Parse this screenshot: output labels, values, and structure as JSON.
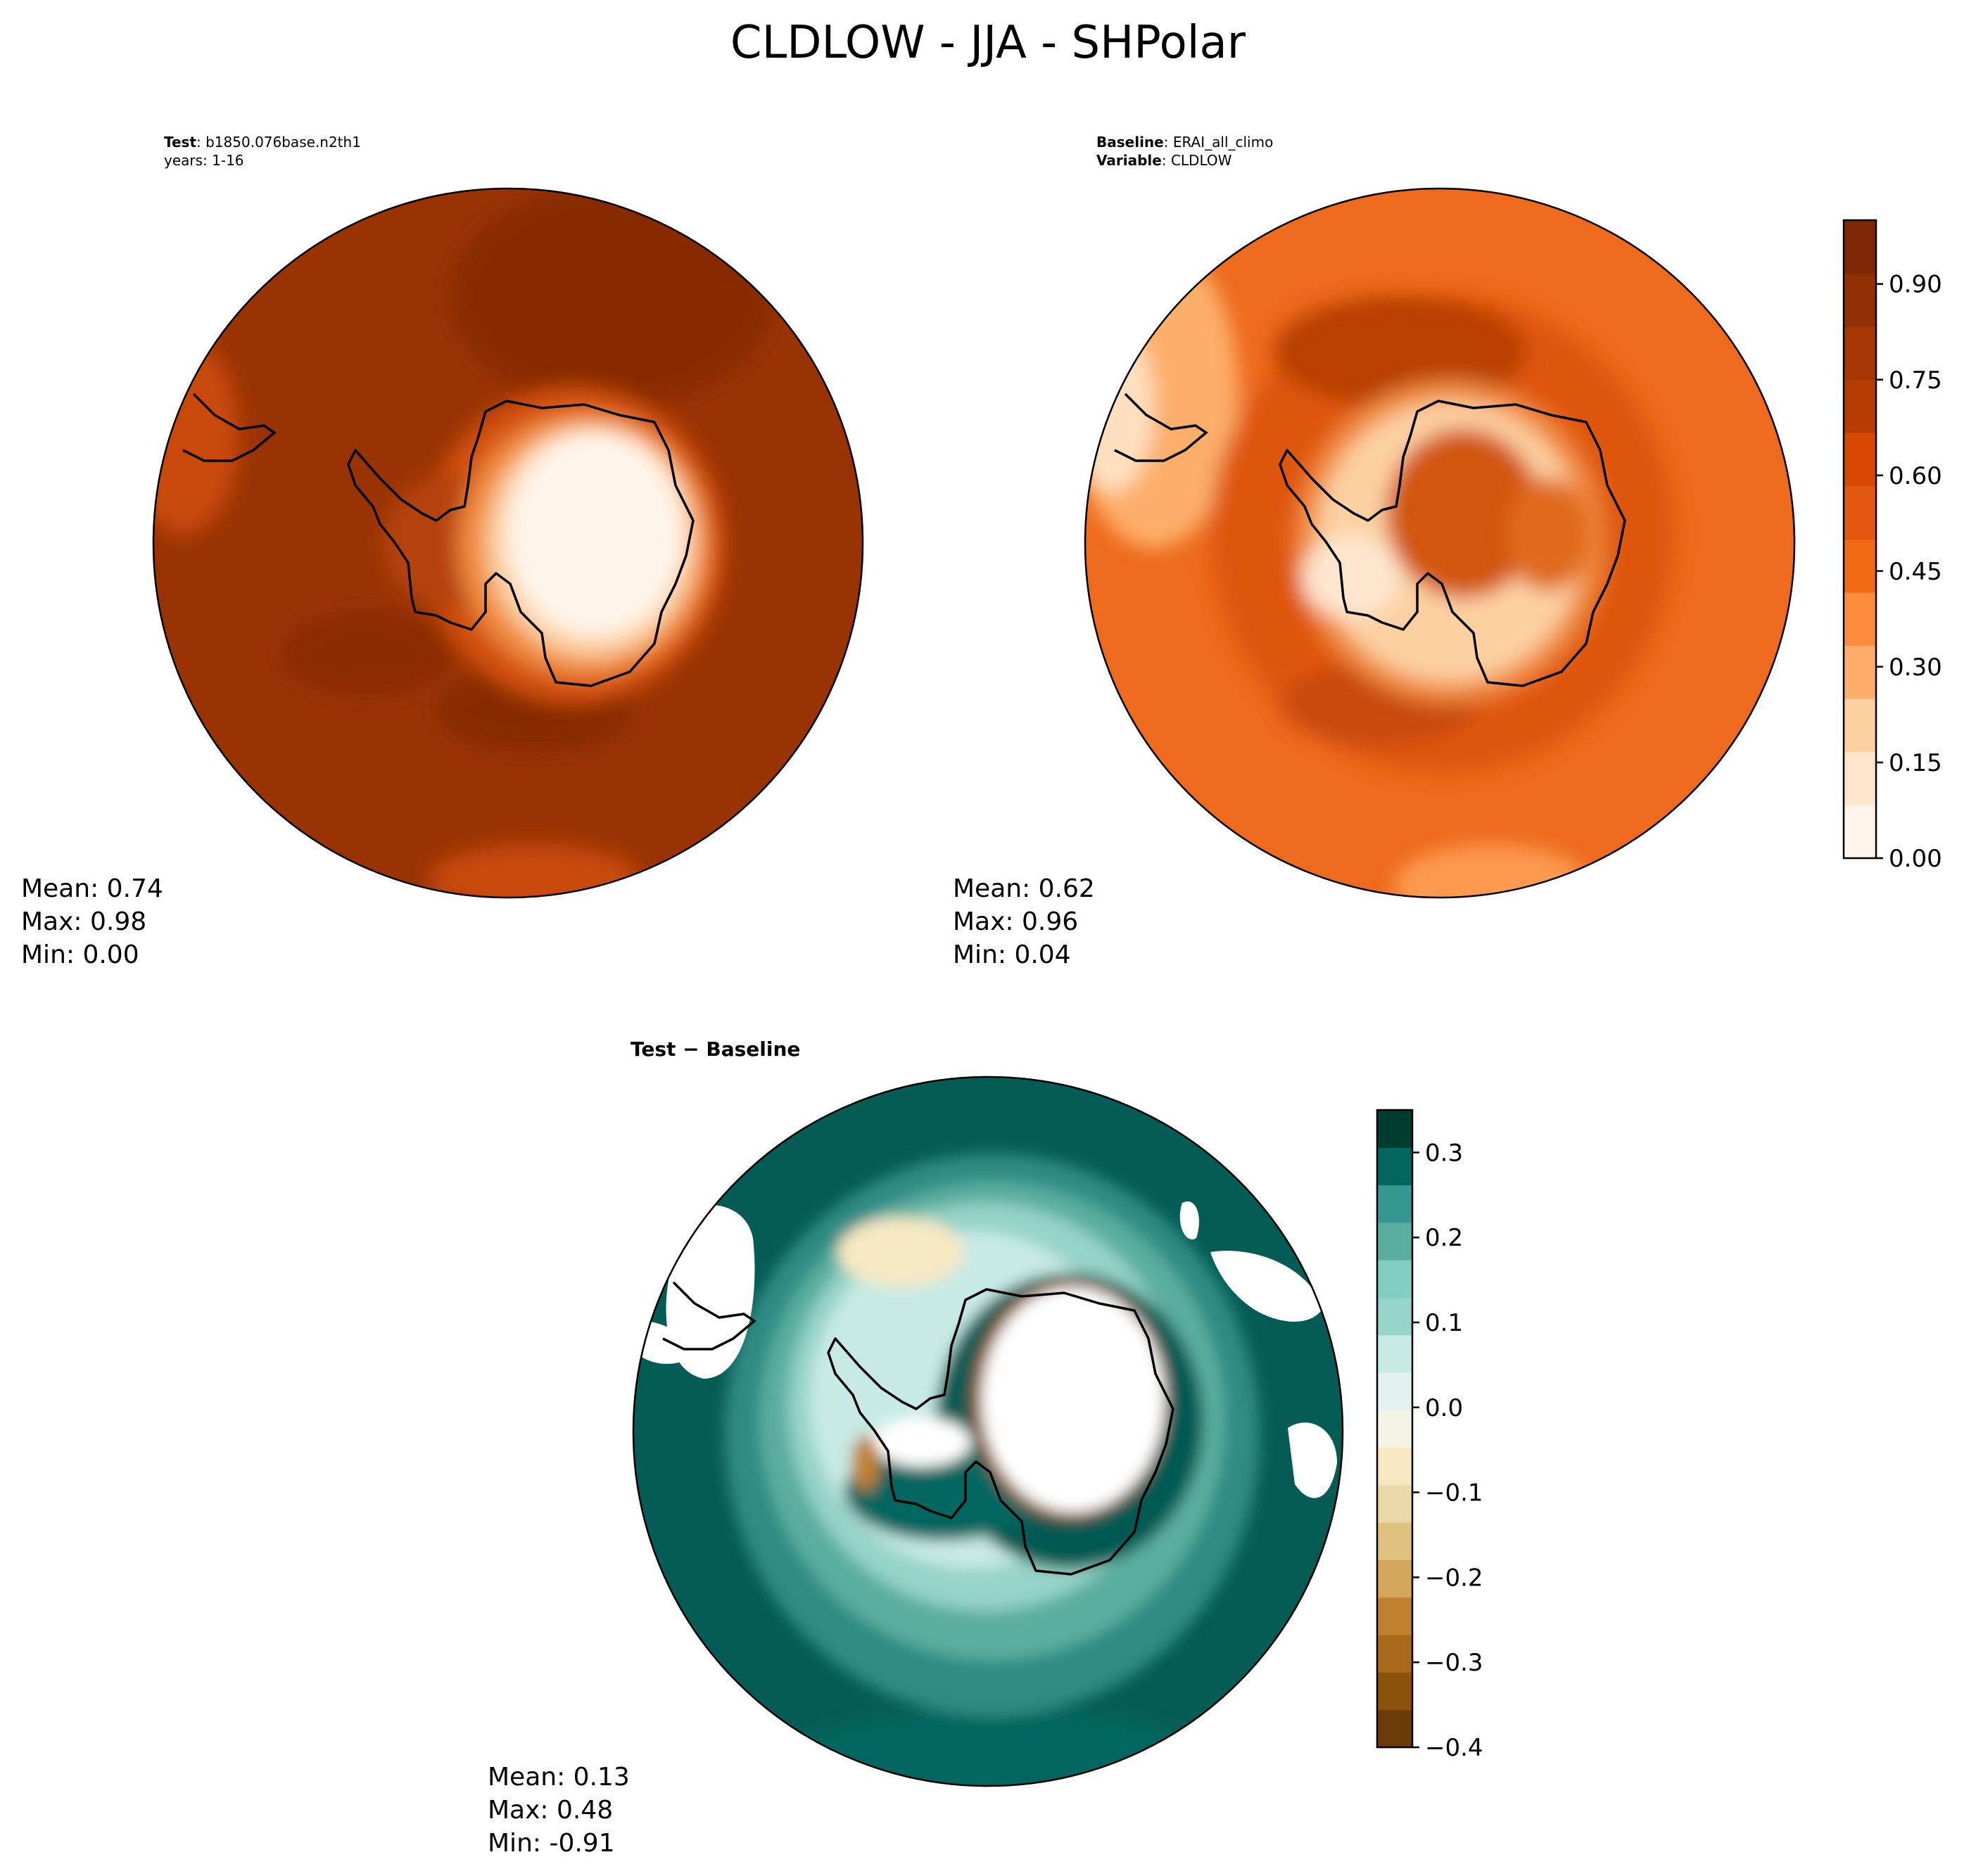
{
  "figure": {
    "title": "CLDLOW - JJA - SHPolar"
  },
  "panels": {
    "test": {
      "label_bold": "Test",
      "label_value": ": b1850.076base.n2th1",
      "subtitle": "years: 1-16",
      "stats": {
        "mean": "Mean:  0.74",
        "max": "Max:  0.98",
        "min": "Min:  0.00"
      }
    },
    "baseline": {
      "label_bold": "Baseline",
      "label_value": ": ERAI_all_climo",
      "label2_bold": "Variable",
      "label2_value": ": CLDLOW",
      "stats": {
        "mean": "Mean:  0.62",
        "max": "Max:  0.96",
        "min": "Min:  0.04"
      }
    },
    "diff": {
      "label": "Test − Baseline",
      "stats": {
        "mean": "Mean:  0.13",
        "max": "Max:  0.48",
        "min": "Min: -0.91"
      }
    }
  },
  "colorbars": {
    "main": {
      "colormap": "Oranges",
      "colors": [
        "#fff5eb",
        "#fee6ce",
        "#fdd0a2",
        "#fdae6b",
        "#fd8d3c",
        "#f16913",
        "#e4570e",
        "#d94801",
        "#b63c02",
        "#a63603",
        "#8f2f03",
        "#7f2704"
      ],
      "ticks": [
        "0.00",
        "0.15",
        "0.30",
        "0.45",
        "0.60",
        "0.75",
        "0.90"
      ],
      "range": [
        0.0,
        1.0
      ]
    },
    "diff": {
      "colormap": "BrBG",
      "colors": [
        "#6b3a08",
        "#8c510a",
        "#a8691a",
        "#bf812d",
        "#d3a659",
        "#dfc27d",
        "#ecd9a8",
        "#f6e8c3",
        "#f5f2e6",
        "#e3f2ee",
        "#c7eae5",
        "#96d3c8",
        "#80cdc1",
        "#5aae9f",
        "#35978f",
        "#01665e",
        "#003c30"
      ],
      "ticks": [
        "0.3",
        "0.2",
        "0.1",
        "0.0",
        "−0.1",
        "−0.2",
        "−0.3",
        "−0.4"
      ],
      "range": [
        -0.4,
        0.35
      ]
    }
  },
  "chart_data": [
    {
      "type": "heatmap",
      "title": "Test : b1850.076base.n2th1",
      "subtitle": "years: 1-16",
      "projection": "South polar stereographic",
      "colorscale_range": [
        0.0,
        1.0
      ],
      "stats": {
        "mean": 0.74,
        "max": 0.98,
        "min": 0.0
      }
    },
    {
      "type": "heatmap",
      "title": "Baseline : ERAI_all_climo",
      "subtitle": "Variable : CLDLOW",
      "projection": "South polar stereographic",
      "colorscale_range": [
        0.0,
        1.0
      ],
      "colorbar_ticks": [
        0.0,
        0.15,
        0.3,
        0.45,
        0.6,
        0.75,
        0.9
      ],
      "stats": {
        "mean": 0.62,
        "max": 0.96,
        "min": 0.04
      }
    },
    {
      "type": "heatmap",
      "title": "Test − Baseline",
      "projection": "South polar stereographic",
      "colorscale_range": [
        -0.4,
        0.35
      ],
      "colorbar_ticks": [
        -0.4,
        -0.3,
        -0.2,
        -0.1,
        0.0,
        0.1,
        0.2,
        0.3
      ],
      "stats": {
        "mean": 0.13,
        "max": 0.48,
        "min": -0.91
      }
    }
  ]
}
